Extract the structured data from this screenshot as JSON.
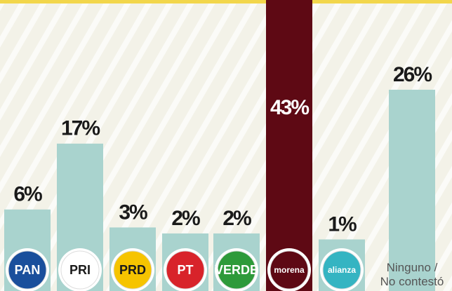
{
  "chart_data": {
    "type": "bar",
    "categories": [
      "PAN",
      "PRI",
      "PRD",
      "PT",
      "VERDE",
      "morena",
      "alianza",
      "Ninguno / No contestó"
    ],
    "values": [
      6,
      17,
      3,
      2,
      2,
      43,
      1,
      26
    ],
    "value_labels": [
      "6%",
      "17%",
      "3%",
      "2%",
      "2%",
      "43%",
      "1%",
      "26%"
    ],
    "colors": [
      "#a9d3ce",
      "#a9d3ce",
      "#a9d3ce",
      "#a9d3ce",
      "#a9d3ce",
      "#5e0914",
      "#a9d3ce",
      "#a9d3ce"
    ]
  }
}
